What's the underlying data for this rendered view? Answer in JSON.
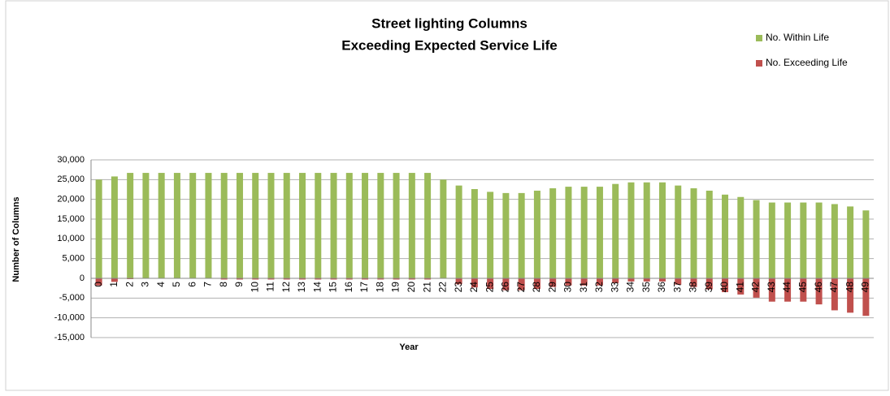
{
  "chart_data": {
    "type": "bar",
    "stacked": true,
    "title": [
      "Street lighting Columns",
      "Exceeding Expected Service Life"
    ],
    "x_label": "Year",
    "y_label": "Number of Columns",
    "categories": [
      0,
      1,
      2,
      3,
      4,
      5,
      6,
      7,
      8,
      9,
      10,
      11,
      12,
      13,
      14,
      15,
      16,
      17,
      18,
      19,
      20,
      21,
      22,
      23,
      24,
      25,
      26,
      27,
      28,
      29,
      30,
      31,
      32,
      33,
      34,
      35,
      36,
      37,
      38,
      39,
      40,
      41,
      42,
      43,
      44,
      45,
      46,
      47,
      48,
      49
    ],
    "series": [
      {
        "name": "No. Within Life",
        "color": "#9bbb59",
        "values": [
          25000,
          25800,
          26700,
          26700,
          26700,
          26700,
          26700,
          26700,
          26700,
          26700,
          26700,
          26700,
          26700,
          26700,
          26700,
          26700,
          26700,
          26700,
          26700,
          26700,
          26700,
          26700,
          25000,
          23500,
          22600,
          21900,
          21600,
          21600,
          22200,
          22800,
          23200,
          23200,
          23200,
          23900,
          24300,
          24300,
          24300,
          23500,
          22800,
          22200,
          21200,
          20600,
          19800,
          19200,
          19200,
          19200,
          19200,
          18800,
          18200,
          17200
        ]
      },
      {
        "name": "No. Exceeding Life",
        "color": "#c0504d",
        "values": [
          -1800,
          -900,
          -200,
          0,
          0,
          0,
          0,
          0,
          -300,
          -300,
          -300,
          -300,
          -300,
          -300,
          -300,
          -300,
          -300,
          -300,
          -300,
          -300,
          -300,
          -300,
          0,
          -1500,
          -2300,
          -2700,
          -3000,
          -3000,
          -2700,
          -2200,
          -1800,
          -1800,
          -1800,
          -1200,
          -800,
          -800,
          -800,
          -1600,
          -2200,
          -2800,
          -3500,
          -4100,
          -4900,
          -5900,
          -5900,
          -5900,
          -6600,
          -8100,
          -8700,
          -9500
        ]
      }
    ],
    "ylim": [
      -15000,
      30000
    ],
    "yticks": [
      {
        "value": -15000,
        "label": "-15,000"
      },
      {
        "value": -10000,
        "label": "-10,000"
      },
      {
        "value": -5000,
        "label": "-5,000"
      },
      0,
      {
        "value": 5000,
        "label": "5,000"
      },
      {
        "value": 10000,
        "label": "10,000"
      },
      {
        "value": 15000,
        "label": "15,000"
      },
      {
        "value": 20000,
        "label": "20,000"
      },
      {
        "value": 25000,
        "label": "25,000"
      },
      {
        "value": 30000,
        "label": "30,000"
      }
    ],
    "grid": true,
    "legend": "top-right"
  }
}
